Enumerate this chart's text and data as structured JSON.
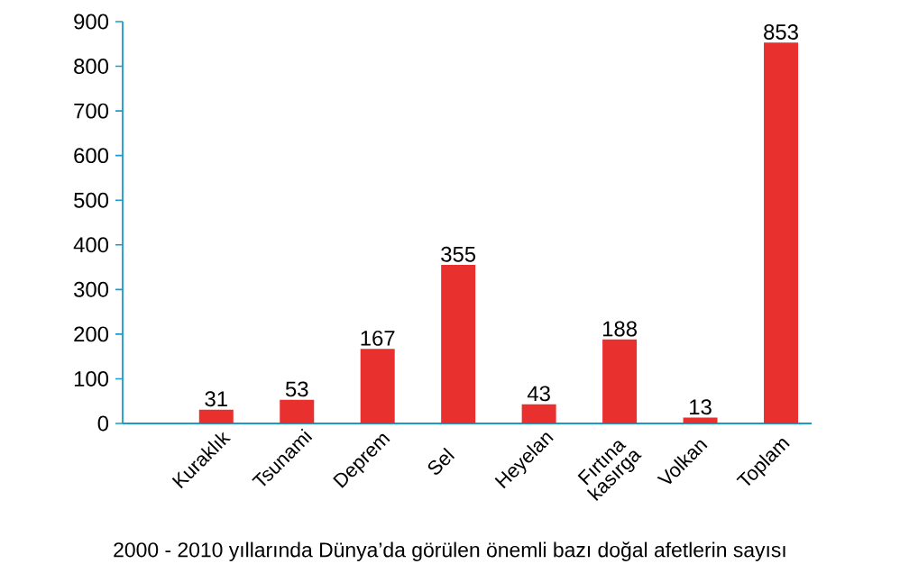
{
  "chart_data": {
    "type": "bar",
    "title": "2000 - 2010 yıllarında Dünya’da görülen önemli bazı doğal afetlerin sayısı",
    "categories": [
      "Kuraklık",
      "Tsunami",
      "Deprem",
      "Sel",
      "Heyelan",
      "Fırtına kasırga",
      "Volkan",
      "Toplam"
    ],
    "values": [
      31,
      53,
      167,
      355,
      43,
      188,
      13,
      853
    ],
    "color": "#e8302f",
    "ylim": [
      0,
      900
    ],
    "yticks": [
      0,
      100,
      200,
      300,
      400,
      500,
      600,
      700,
      800,
      900
    ],
    "data_labels": true,
    "grid": false
  }
}
